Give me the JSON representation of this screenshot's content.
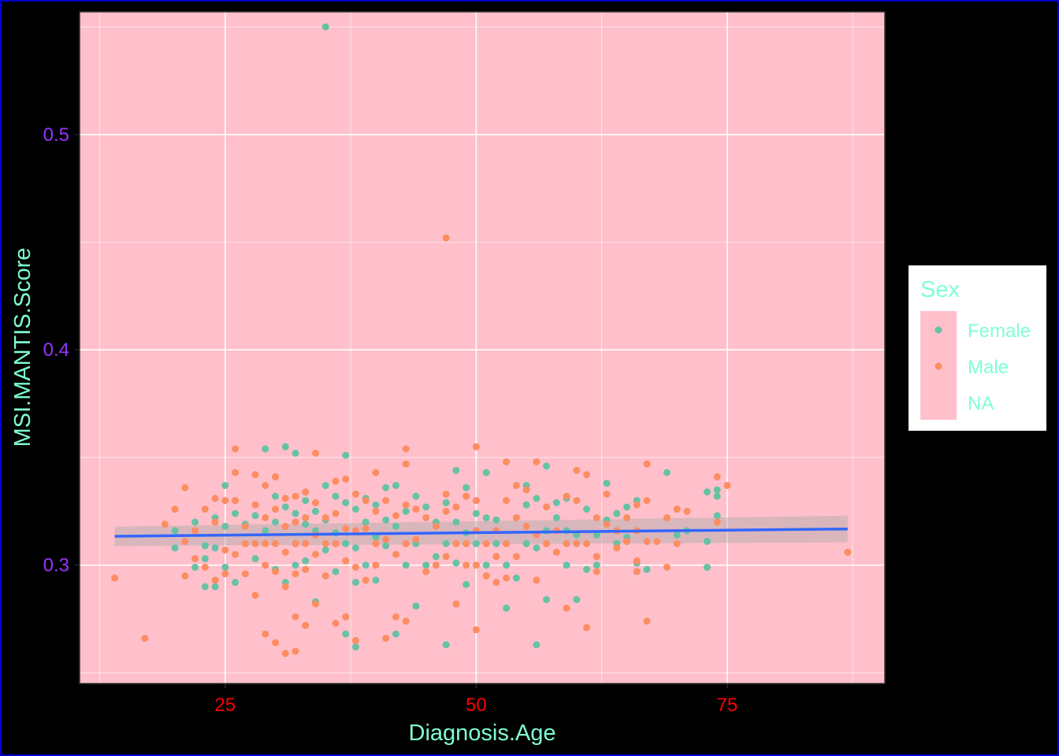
{
  "chart_data": {
    "type": "scatter",
    "title": "",
    "xlabel": "Diagnosis.Age",
    "ylabel": "MSI.MANTIS.Score",
    "xlim": [
      10.5,
      90.7
    ],
    "ylim": [
      0.245,
      0.557
    ],
    "x_ticks": [
      25,
      50,
      75
    ],
    "y_ticks": [
      0.3,
      0.4,
      0.5
    ],
    "x_tick_labels": [
      "25",
      "50",
      "75"
    ],
    "y_tick_labels": [
      "0.3",
      "0.4",
      "0.5"
    ],
    "grid": true,
    "legend": {
      "title": "Sex",
      "placement": "right",
      "entries": [
        {
          "label": "Female",
          "color": "#66c2a5"
        },
        {
          "label": "Male",
          "color": "#fc8d62"
        },
        {
          "label": "NA",
          "color": ""
        }
      ]
    },
    "colors": {
      "panel_background": "#ffc0cb",
      "page_background": "#000000",
      "frame": "#0000cc",
      "grid": "#ffffff",
      "trend_line": "#3366ff",
      "ribbon": "#aaaaaa"
    },
    "trend_line": {
      "method": "lm",
      "x": [
        14,
        87
      ],
      "y": [
        0.3134,
        0.3168
      ],
      "ci_halfwidth": [
        0.0045,
        0.0062
      ]
    },
    "series": [
      {
        "name": "Female",
        "color": "#66c2a5",
        "points": [
          [
            35,
            0.55
          ],
          [
            20,
            0.316
          ],
          [
            20,
            0.308
          ],
          [
            22,
            0.32
          ],
          [
            22,
            0.299
          ],
          [
            23,
            0.309
          ],
          [
            23,
            0.303
          ],
          [
            23,
            0.29
          ],
          [
            24,
            0.322
          ],
          [
            24,
            0.308
          ],
          [
            24,
            0.29
          ],
          [
            25,
            0.337
          ],
          [
            25,
            0.318
          ],
          [
            25,
            0.299
          ],
          [
            26,
            0.324
          ],
          [
            26,
            0.292
          ],
          [
            27,
            0.319
          ],
          [
            27,
            0.31
          ],
          [
            28,
            0.323
          ],
          [
            28,
            0.303
          ],
          [
            29,
            0.354
          ],
          [
            29,
            0.316
          ],
          [
            30,
            0.332
          ],
          [
            30,
            0.32
          ],
          [
            30,
            0.298
          ],
          [
            31,
            0.355
          ],
          [
            31,
            0.327
          ],
          [
            31,
            0.292
          ],
          [
            32,
            0.352
          ],
          [
            32,
            0.324
          ],
          [
            32,
            0.31
          ],
          [
            32,
            0.3
          ],
          [
            33,
            0.33
          ],
          [
            33,
            0.319
          ],
          [
            33,
            0.302
          ],
          [
            34,
            0.325
          ],
          [
            34,
            0.316
          ],
          [
            34,
            0.283
          ],
          [
            35,
            0.337
          ],
          [
            35,
            0.321
          ],
          [
            35,
            0.307
          ],
          [
            35,
            0.295
          ],
          [
            36,
            0.332
          ],
          [
            36,
            0.315
          ],
          [
            36,
            0.297
          ],
          [
            37,
            0.351
          ],
          [
            37,
            0.329
          ],
          [
            37,
            0.31
          ],
          [
            37,
            0.268
          ],
          [
            38,
            0.326
          ],
          [
            38,
            0.308
          ],
          [
            38,
            0.292
          ],
          [
            38,
            0.262
          ],
          [
            39,
            0.331
          ],
          [
            39,
            0.32
          ],
          [
            39,
            0.3
          ],
          [
            40,
            0.328
          ],
          [
            40,
            0.313
          ],
          [
            40,
            0.293
          ],
          [
            41,
            0.336
          ],
          [
            41,
            0.321
          ],
          [
            41,
            0.309
          ],
          [
            42,
            0.337
          ],
          [
            42,
            0.318
          ],
          [
            42,
            0.268
          ],
          [
            43,
            0.325
          ],
          [
            43,
            0.3
          ],
          [
            44,
            0.332
          ],
          [
            44,
            0.31
          ],
          [
            44,
            0.281
          ],
          [
            45,
            0.327
          ],
          [
            45,
            0.3
          ],
          [
            46,
            0.32
          ],
          [
            46,
            0.304
          ],
          [
            47,
            0.329
          ],
          [
            47,
            0.31
          ],
          [
            47,
            0.263
          ],
          [
            48,
            0.344
          ],
          [
            48,
            0.32
          ],
          [
            48,
            0.301
          ],
          [
            49,
            0.336
          ],
          [
            49,
            0.315
          ],
          [
            49,
            0.291
          ],
          [
            50,
            0.324
          ],
          [
            50,
            0.31
          ],
          [
            51,
            0.343
          ],
          [
            51,
            0.322
          ],
          [
            51,
            0.3
          ],
          [
            52,
            0.321
          ],
          [
            52,
            0.31
          ],
          [
            53,
            0.3
          ],
          [
            53,
            0.28
          ],
          [
            54,
            0.322
          ],
          [
            54,
            0.294
          ],
          [
            55,
            0.337
          ],
          [
            55,
            0.328
          ],
          [
            55,
            0.31
          ],
          [
            56,
            0.331
          ],
          [
            56,
            0.308
          ],
          [
            56,
            0.263
          ],
          [
            57,
            0.346
          ],
          [
            57,
            0.316
          ],
          [
            57,
            0.284
          ],
          [
            58,
            0.329
          ],
          [
            58,
            0.322
          ],
          [
            59,
            0.331
          ],
          [
            59,
            0.316
          ],
          [
            59,
            0.3
          ],
          [
            60,
            0.314
          ],
          [
            60,
            0.284
          ],
          [
            61,
            0.326
          ],
          [
            61,
            0.298
          ],
          [
            62,
            0.314
          ],
          [
            62,
            0.3
          ],
          [
            63,
            0.338
          ],
          [
            63,
            0.321
          ],
          [
            64,
            0.324
          ],
          [
            64,
            0.31
          ],
          [
            65,
            0.327
          ],
          [
            65,
            0.313
          ],
          [
            66,
            0.33
          ],
          [
            66,
            0.301
          ],
          [
            67,
            0.298
          ],
          [
            69,
            0.343
          ],
          [
            70,
            0.314
          ],
          [
            71,
            0.316
          ],
          [
            73,
            0.334
          ],
          [
            73,
            0.311
          ],
          [
            73,
            0.299
          ],
          [
            74,
            0.332
          ],
          [
            74,
            0.323
          ],
          [
            74,
            0.335
          ]
        ]
      },
      {
        "name": "Male",
        "color": "#fc8d62",
        "points": [
          [
            47,
            0.452
          ],
          [
            14,
            0.294
          ],
          [
            17,
            0.266
          ],
          [
            19,
            0.319
          ],
          [
            20,
            0.326
          ],
          [
            21,
            0.336
          ],
          [
            21,
            0.311
          ],
          [
            21,
            0.295
          ],
          [
            22,
            0.303
          ],
          [
            22,
            0.316
          ],
          [
            23,
            0.326
          ],
          [
            23,
            0.299
          ],
          [
            24,
            0.331
          ],
          [
            24,
            0.293
          ],
          [
            24,
            0.32
          ],
          [
            25,
            0.33
          ],
          [
            25,
            0.307
          ],
          [
            25,
            0.296
          ],
          [
            26,
            0.354
          ],
          [
            26,
            0.343
          ],
          [
            26,
            0.33
          ],
          [
            26,
            0.305
          ],
          [
            27,
            0.318
          ],
          [
            27,
            0.31
          ],
          [
            27,
            0.296
          ],
          [
            28,
            0.342
          ],
          [
            28,
            0.328
          ],
          [
            28,
            0.31
          ],
          [
            28,
            0.286
          ],
          [
            29,
            0.337
          ],
          [
            29,
            0.322
          ],
          [
            29,
            0.31
          ],
          [
            29,
            0.3
          ],
          [
            29,
            0.268
          ],
          [
            30,
            0.341
          ],
          [
            30,
            0.326
          ],
          [
            30,
            0.31
          ],
          [
            30,
            0.297
          ],
          [
            30,
            0.264
          ],
          [
            31,
            0.331
          ],
          [
            31,
            0.318
          ],
          [
            31,
            0.306
          ],
          [
            31,
            0.29
          ],
          [
            31,
            0.259
          ],
          [
            32,
            0.332
          ],
          [
            32,
            0.32
          ],
          [
            32,
            0.31
          ],
          [
            32,
            0.296
          ],
          [
            32,
            0.276
          ],
          [
            32,
            0.26
          ],
          [
            33,
            0.334
          ],
          [
            33,
            0.322
          ],
          [
            33,
            0.31
          ],
          [
            33,
            0.298
          ],
          [
            33,
            0.272
          ],
          [
            34,
            0.352
          ],
          [
            34,
            0.329
          ],
          [
            34,
            0.314
          ],
          [
            34,
            0.305
          ],
          [
            34,
            0.282
          ],
          [
            35,
            0.322
          ],
          [
            35,
            0.31
          ],
          [
            35,
            0.295
          ],
          [
            36,
            0.339
          ],
          [
            36,
            0.324
          ],
          [
            36,
            0.31
          ],
          [
            36,
            0.273
          ],
          [
            37,
            0.34
          ],
          [
            37,
            0.317
          ],
          [
            37,
            0.302
          ],
          [
            37,
            0.276
          ],
          [
            38,
            0.333
          ],
          [
            38,
            0.316
          ],
          [
            38,
            0.299
          ],
          [
            38,
            0.265
          ],
          [
            39,
            0.33
          ],
          [
            39,
            0.317
          ],
          [
            39,
            0.293
          ],
          [
            40,
            0.343
          ],
          [
            40,
            0.325
          ],
          [
            40,
            0.31
          ],
          [
            40,
            0.3
          ],
          [
            41,
            0.33
          ],
          [
            41,
            0.312
          ],
          [
            41,
            0.266
          ],
          [
            42,
            0.323
          ],
          [
            42,
            0.305
          ],
          [
            42,
            0.276
          ],
          [
            43,
            0.354
          ],
          [
            43,
            0.347
          ],
          [
            43,
            0.328
          ],
          [
            43,
            0.31
          ],
          [
            43,
            0.274
          ],
          [
            44,
            0.326
          ],
          [
            44,
            0.312
          ],
          [
            45,
            0.322
          ],
          [
            45,
            0.297
          ],
          [
            46,
            0.318
          ],
          [
            46,
            0.3
          ],
          [
            47,
            0.333
          ],
          [
            47,
            0.325
          ],
          [
            47,
            0.304
          ],
          [
            48,
            0.327
          ],
          [
            48,
            0.31
          ],
          [
            48,
            0.282
          ],
          [
            49,
            0.332
          ],
          [
            49,
            0.31
          ],
          [
            49,
            0.3
          ],
          [
            50,
            0.355
          ],
          [
            50,
            0.33
          ],
          [
            50,
            0.316
          ],
          [
            50,
            0.3
          ],
          [
            50,
            0.27
          ],
          [
            51,
            0.31
          ],
          [
            51,
            0.295
          ],
          [
            52,
            0.316
          ],
          [
            52,
            0.304
          ],
          [
            52,
            0.292
          ],
          [
            53,
            0.348
          ],
          [
            53,
            0.33
          ],
          [
            53,
            0.31
          ],
          [
            53,
            0.294
          ],
          [
            54,
            0.337
          ],
          [
            54,
            0.322
          ],
          [
            54,
            0.304
          ],
          [
            55,
            0.335
          ],
          [
            55,
            0.318
          ],
          [
            56,
            0.348
          ],
          [
            56,
            0.314
          ],
          [
            56,
            0.293
          ],
          [
            57,
            0.327
          ],
          [
            57,
            0.31
          ],
          [
            58,
            0.316
          ],
          [
            58,
            0.306
          ],
          [
            59,
            0.332
          ],
          [
            59,
            0.31
          ],
          [
            59,
            0.28
          ],
          [
            60,
            0.344
          ],
          [
            60,
            0.33
          ],
          [
            60,
            0.31
          ],
          [
            61,
            0.342
          ],
          [
            61,
            0.31
          ],
          [
            61,
            0.271
          ],
          [
            62,
            0.322
          ],
          [
            62,
            0.304
          ],
          [
            62,
            0.297
          ],
          [
            63,
            0.333
          ],
          [
            63,
            0.319
          ],
          [
            64,
            0.316
          ],
          [
            64,
            0.308
          ],
          [
            65,
            0.322
          ],
          [
            65,
            0.311
          ],
          [
            66,
            0.328
          ],
          [
            66,
            0.316
          ],
          [
            66,
            0.302
          ],
          [
            66,
            0.297
          ],
          [
            67,
            0.347
          ],
          [
            67,
            0.33
          ],
          [
            67,
            0.311
          ],
          [
            67,
            0.274
          ],
          [
            68,
            0.311
          ],
          [
            69,
            0.322
          ],
          [
            69,
            0.299
          ],
          [
            70,
            0.326
          ],
          [
            70,
            0.31
          ],
          [
            71,
            0.325
          ],
          [
            74,
            0.341
          ],
          [
            74,
            0.32
          ],
          [
            75,
            0.337
          ],
          [
            87,
            0.306
          ]
        ]
      }
    ]
  }
}
